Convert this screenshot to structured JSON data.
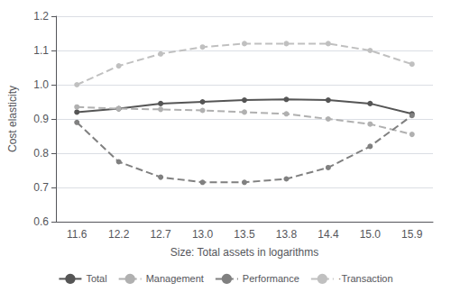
{
  "chart_data": {
    "type": "line",
    "categories": [
      "11.6",
      "12.2",
      "12.7",
      "13.0",
      "13.5",
      "13.8",
      "14.4",
      "15.0",
      "15.9"
    ],
    "series": [
      {
        "name": "Total",
        "color": "#555555",
        "line_style": "solid",
        "marker": "circle",
        "values": [
          0.92,
          0.93,
          0.945,
          0.95,
          0.955,
          0.957,
          0.955,
          0.945,
          0.915
        ]
      },
      {
        "name": "Management",
        "color": "#b0b0b0",
        "line_style": "dashed",
        "marker": "circle",
        "values": [
          0.935,
          0.93,
          0.928,
          0.925,
          0.92,
          0.915,
          0.9,
          0.885,
          0.855
        ]
      },
      {
        "name": "Performance",
        "color": "#808080",
        "line_style": "dashed",
        "marker": "circle",
        "values": [
          0.89,
          0.775,
          0.73,
          0.715,
          0.715,
          0.725,
          0.758,
          0.82,
          0.91
        ]
      },
      {
        "name": "·Transaction",
        "color": "#c0c0c0",
        "line_style": "dashed",
        "marker": "circle",
        "values": [
          1.0,
          1.055,
          1.09,
          1.11,
          1.12,
          1.12,
          1.12,
          1.1,
          1.06
        ]
      }
    ],
    "xlabel": "Size: Total assets in logarithms",
    "ylabel": "Cost elasticity",
    "ylim": [
      0.6,
      1.2
    ],
    "yticks": [
      0.6,
      0.7,
      0.8,
      0.9,
      {
        "value": 1.0,
        "label": "1.0"
      },
      1.1,
      1.2
    ],
    "grid": true,
    "legend": "bottom"
  }
}
